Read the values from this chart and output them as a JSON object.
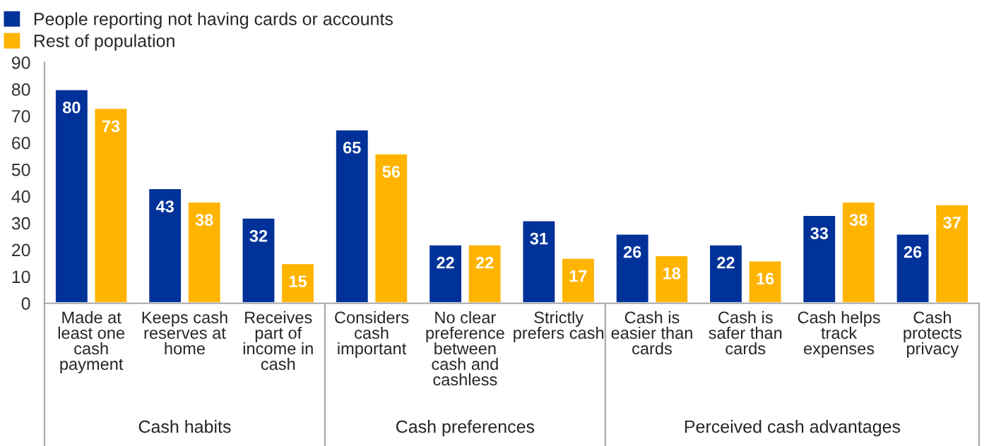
{
  "chart_data": {
    "type": "bar",
    "categories": [
      "Made at\nleast one\ncash\npayment",
      "Keeps cash\nreserves at\nhome",
      "Receives\npart of\nincome in\ncash",
      "Considers\ncash\nimportant",
      "No clear\npreference\nbetween\ncash and\ncashless",
      "Strictly\nprefers cash",
      "Cash is\neasier than\ncards",
      "Cash is\nsafer than\ncards",
      "Cash helps\ntrack\nexpenses",
      "Cash\nprotects\nprivacy"
    ],
    "series": [
      {
        "name": "People reporting not having cards or accounts",
        "color": "#003299",
        "values": [
          80,
          43,
          32,
          65,
          22,
          31,
          26,
          22,
          33,
          26
        ]
      },
      {
        "name": "Rest of population",
        "color": "#ffb400",
        "values": [
          73,
          38,
          15,
          56,
          22,
          17,
          18,
          16,
          38,
          37
        ]
      }
    ],
    "annotations": [
      "Cash habits",
      "Cash preferences",
      "Perceived cash advantages"
    ],
    "ylim": [
      0,
      90
    ],
    "yticks": [
      0,
      10,
      20,
      30,
      40,
      50,
      60,
      70,
      80,
      90
    ],
    "data_labels": true,
    "grid": false,
    "legend": "top left"
  }
}
